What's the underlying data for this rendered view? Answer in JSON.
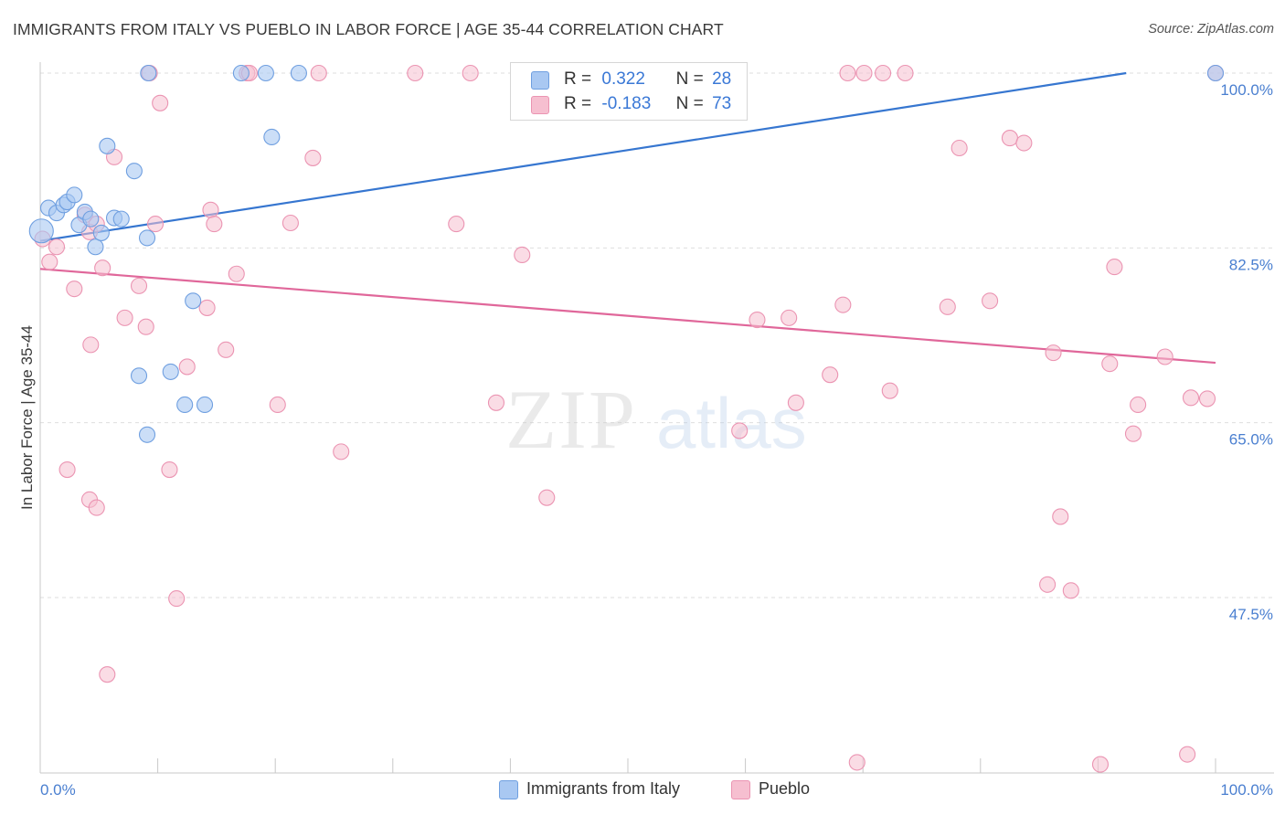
{
  "title": "IMMIGRANTS FROM ITALY VS PUEBLO IN LABOR FORCE | AGE 35-44 CORRELATION CHART",
  "source": "Source: ZipAtlas.com",
  "watermark": {
    "zip": "ZIP",
    "atlas": "atlas"
  },
  "legend": {
    "rows": [
      {
        "r_label": "R =",
        "r_value": "0.322",
        "n_label": "N =",
        "n_value": "28"
      },
      {
        "r_label": "R =",
        "r_value": "-0.183",
        "n_label": "N =",
        "n_value": "73"
      }
    ]
  },
  "bottom_legend": {
    "series_a": "Immigrants from Italy",
    "series_b": "Pueblo"
  },
  "colors": {
    "blue_fill": "#a9c8f2",
    "blue_stroke": "#6f9fe0",
    "blue_line": "#3676d0",
    "pink_fill": "#f6bfd0",
    "pink_stroke": "#eb94b2",
    "pink_line": "#e0679a",
    "tick_text": "#4a7fd0",
    "grid": "#dedede"
  },
  "chart_data": {
    "type": "scatter",
    "title": "IMMIGRANTS FROM ITALY VS PUEBLO IN LABOR FORCE | AGE 35-44 CORRELATION CHART",
    "xlabel": "",
    "ylabel": "In Labor Force | Age 35-44",
    "xlim": [
      0,
      1.0
    ],
    "ylim": [
      29.5,
      101.8
    ],
    "x_tick_labels": [
      "0.0%",
      "100.0%"
    ],
    "y_ticks": [
      47.5,
      65.0,
      82.5,
      100.0
    ],
    "y_tick_labels": [
      "47.5%",
      "65.0%",
      "82.5%",
      "100.0%"
    ],
    "series": [
      {
        "name": "Immigrants from Italy",
        "R": 0.322,
        "N": 28,
        "trend": {
          "x": [
            0,
            0.924
          ],
          "y": [
            83.2,
            100.0
          ]
        },
        "points": [
          [
            0.001,
            84.2
          ],
          [
            0.007,
            86.5
          ],
          [
            0.014,
            86.0
          ],
          [
            0.02,
            86.8
          ],
          [
            0.023,
            87.1
          ],
          [
            0.029,
            87.8
          ],
          [
            0.033,
            84.8
          ],
          [
            0.038,
            86.1
          ],
          [
            0.043,
            85.4
          ],
          [
            0.047,
            82.6
          ],
          [
            0.052,
            84.0
          ],
          [
            0.057,
            92.7
          ],
          [
            0.063,
            85.5
          ],
          [
            0.069,
            85.4
          ],
          [
            0.08,
            90.2
          ],
          [
            0.084,
            69.7
          ],
          [
            0.091,
            63.8
          ],
          [
            0.091,
            83.5
          ],
          [
            0.092,
            100.0
          ],
          [
            0.111,
            70.1
          ],
          [
            0.123,
            66.8
          ],
          [
            0.13,
            77.2
          ],
          [
            0.14,
            66.8
          ],
          [
            0.171,
            100.0
          ],
          [
            0.192,
            100.0
          ],
          [
            0.197,
            93.6
          ],
          [
            0.22,
            100.0
          ],
          [
            1.0,
            100.0
          ]
        ]
      },
      {
        "name": "Pueblo",
        "R": -0.183,
        "N": 73,
        "trend": {
          "x": [
            0,
            1.0
          ],
          "y": [
            80.4,
            71.0
          ]
        },
        "points": [
          [
            0.002,
            83.4
          ],
          [
            0.008,
            81.1
          ],
          [
            0.014,
            82.6
          ],
          [
            0.023,
            60.3
          ],
          [
            0.029,
            78.4
          ],
          [
            0.038,
            85.8
          ],
          [
            0.042,
            57.3
          ],
          [
            0.042,
            84.1
          ],
          [
            0.043,
            72.8
          ],
          [
            0.048,
            56.5
          ],
          [
            0.053,
            80.5
          ],
          [
            0.057,
            39.8
          ],
          [
            0.063,
            91.6
          ],
          [
            0.072,
            75.5
          ],
          [
            0.084,
            78.7
          ],
          [
            0.09,
            74.6
          ],
          [
            0.093,
            100.0
          ],
          [
            0.098,
            84.9
          ],
          [
            0.102,
            97.0
          ],
          [
            0.11,
            60.3
          ],
          [
            0.116,
            47.4
          ],
          [
            0.125,
            70.6
          ],
          [
            0.142,
            76.5
          ],
          [
            0.145,
            86.3
          ],
          [
            0.148,
            84.9
          ],
          [
            0.158,
            72.3
          ],
          [
            0.167,
            79.9
          ],
          [
            0.176,
            100.0
          ],
          [
            0.178,
            100.0
          ],
          [
            0.202,
            66.8
          ],
          [
            0.213,
            85.0
          ],
          [
            0.232,
            91.5
          ],
          [
            0.237,
            100.0
          ],
          [
            0.256,
            62.1
          ],
          [
            0.319,
            100.0
          ],
          [
            0.354,
            84.9
          ],
          [
            0.366,
            100.0
          ],
          [
            0.388,
            67.0
          ],
          [
            0.41,
            81.8
          ],
          [
            0.431,
            57.5
          ],
          [
            0.456,
            100.0
          ],
          [
            0.595,
            64.2
          ],
          [
            0.61,
            75.3
          ],
          [
            0.637,
            75.5
          ],
          [
            0.643,
            67.0
          ],
          [
            0.672,
            69.8
          ],
          [
            0.683,
            76.8
          ],
          [
            0.687,
            100.0
          ],
          [
            0.695,
            31.0
          ],
          [
            0.701,
            100.0
          ],
          [
            0.717,
            100.0
          ],
          [
            0.723,
            68.2
          ],
          [
            0.736,
            100.0
          ],
          [
            0.772,
            76.6
          ],
          [
            0.782,
            92.5
          ],
          [
            0.808,
            77.2
          ],
          [
            0.825,
            93.5
          ],
          [
            0.837,
            93.0
          ],
          [
            0.857,
            48.8
          ],
          [
            0.862,
            72.0
          ],
          [
            0.868,
            55.6
          ],
          [
            0.877,
            48.2
          ],
          [
            0.902,
            30.8
          ],
          [
            0.91,
            70.9
          ],
          [
            0.914,
            80.6
          ],
          [
            0.93,
            63.9
          ],
          [
            0.934,
            66.8
          ],
          [
            0.957,
            71.6
          ],
          [
            0.976,
            31.8
          ],
          [
            0.979,
            67.5
          ],
          [
            0.993,
            67.4
          ],
          [
            1.0,
            100.0
          ],
          [
            0.048,
            84.9
          ]
        ]
      }
    ]
  }
}
